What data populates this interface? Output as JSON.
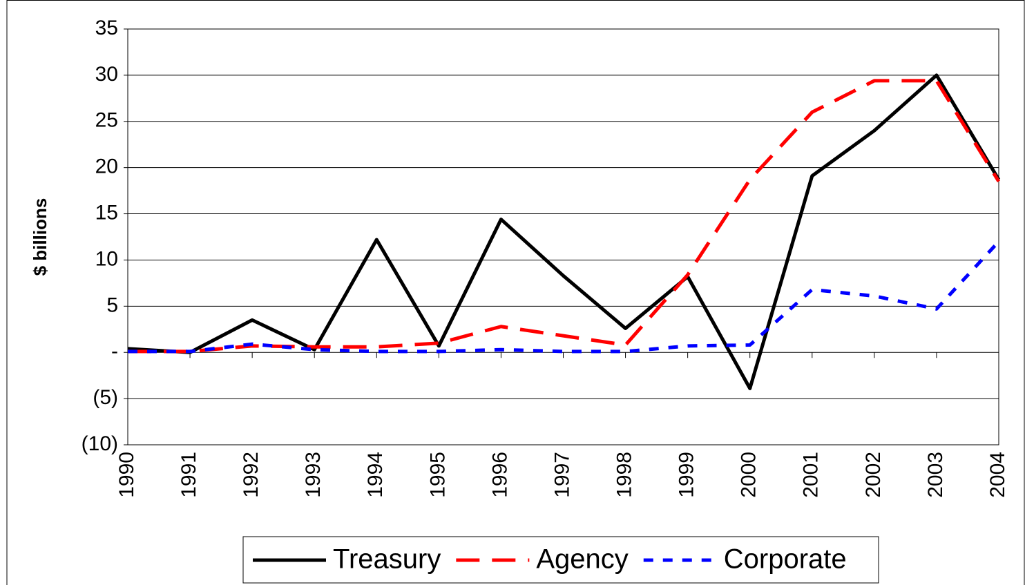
{
  "chart_data": {
    "type": "line",
    "y_label": "$ billions",
    "categories": [
      "1990",
      "1991",
      "1992",
      "1993",
      "1994",
      "1995",
      "1996",
      "1997",
      "1998",
      "1999",
      "2000",
      "2001",
      "2002",
      "2003",
      "2004"
    ],
    "series": [
      {
        "name": "Treasury",
        "color": "#000000",
        "dash": "solid",
        "values": [
          0.4,
          0,
          3.5,
          0.3,
          12.2,
          0.7,
          14.4,
          8.3,
          2.6,
          8.2,
          -3.9,
          19.1,
          24,
          30,
          18.7
        ]
      },
      {
        "name": "Agency",
        "color": "#ff0000",
        "dash": "dashed",
        "values": [
          0.1,
          0.1,
          0.7,
          0.6,
          0.6,
          1.0,
          2.8,
          1.8,
          0.8,
          8.4,
          18.7,
          26,
          29.4,
          29.4,
          18.5
        ]
      },
      {
        "name": "Corporate",
        "color": "#0000ff",
        "dash": "dotted",
        "values": [
          0.1,
          0.1,
          0.9,
          0.3,
          0.1,
          0.1,
          0.3,
          0.1,
          0.1,
          0.7,
          0.8,
          6.8,
          6.1,
          4.7,
          12
        ]
      }
    ],
    "ylim": [
      -10,
      35
    ],
    "yticks": [
      {
        "value": -10,
        "label": "(10)"
      },
      {
        "value": -5,
        "label": "(5)"
      },
      {
        "value": 0,
        "label": "-"
      },
      5,
      10,
      15,
      20,
      25,
      30,
      35
    ],
    "grid": true,
    "legend": "bottom"
  }
}
